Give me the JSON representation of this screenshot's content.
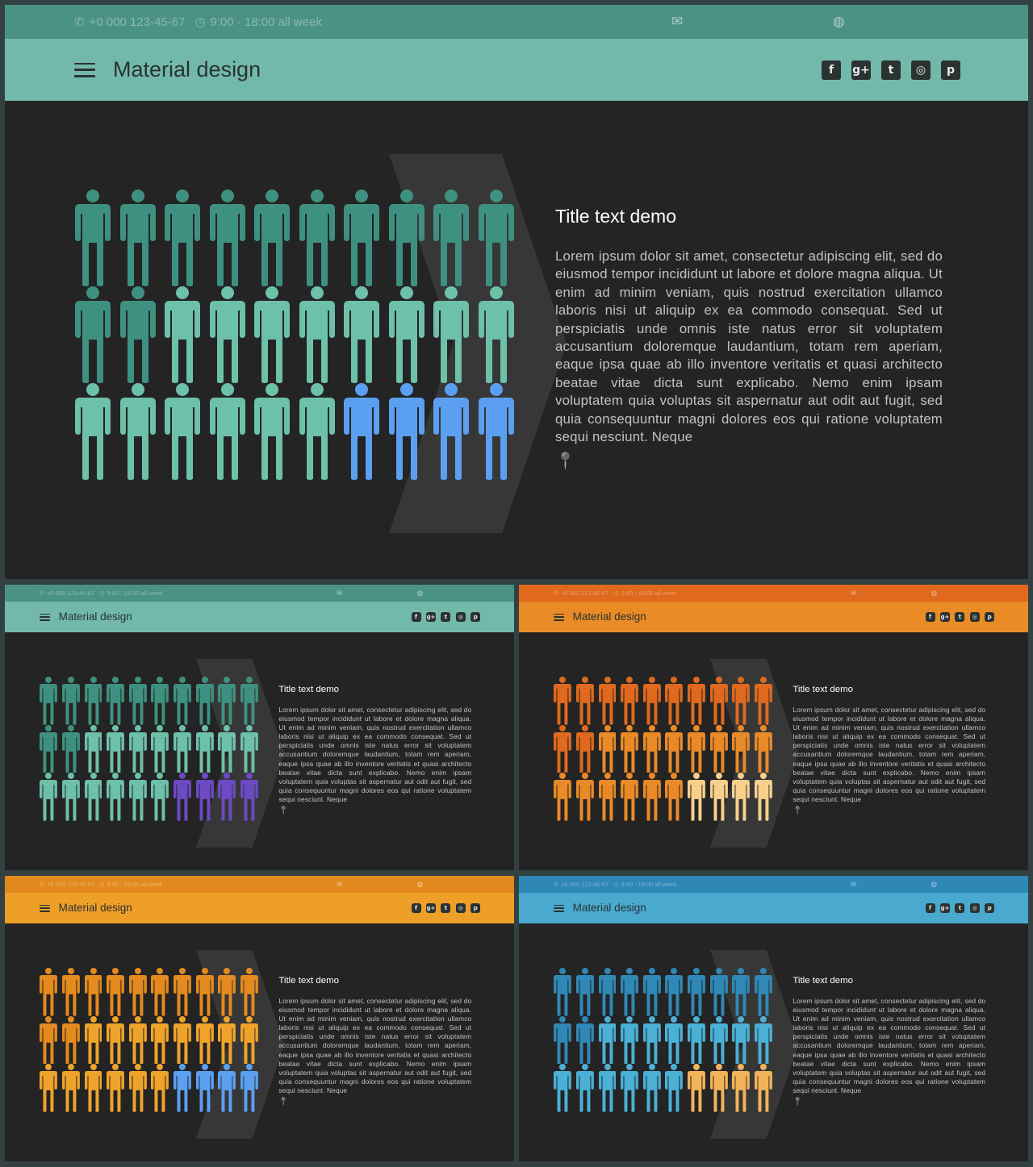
{
  "topbar": {
    "phone": "+0 000 123-45-67",
    "hours": "9:00 - 18:00 all week"
  },
  "header": {
    "brand": "Material design",
    "social_icons": [
      "facebook-icon",
      "google-plus-icon",
      "twitter-icon",
      "instagram-icon",
      "pinterest-icon"
    ]
  },
  "content": {
    "title": "Title text demo",
    "body": "Lorem ipsum dolor sit amet, consectetur adipiscing elit, sed do eiusmod tempor incididunt ut labore et dolore magna aliqua. Ut enim ad minim veniam, quis nostrud exercitation ullamco laboris nisi ut aliquip ex ea commodo consequat. Sed ut perspiciatis unde omnis iste natus error sit voluptatem accusantium doloremque laudantium, totam rem aperiam, eaque ipsa quae ab illo inventore veritatis et quasi architecto beatae vitae dicta sunt explicabo. Nemo enim ipsam voluptatem quia voluptas sit aspernatur aut odit aut fugit, sed quia consequuntur magni dolores eos qui ratione voluptatem sequi nesciunt. Neque"
  },
  "pictogram": {
    "rows": 3,
    "columns": 10,
    "total": 30,
    "highlighted": 4
  },
  "themes": [
    {
      "name": "teal-blue",
      "topbar": "#4a9285",
      "header": "#72b9ab",
      "row_colors": [
        [
          "#3e9180",
          "#3e9180",
          "#3e9180",
          "#3e9180",
          "#3e9180",
          "#3e9180",
          "#3e9180",
          "#3e9180",
          "#3e9180",
          "#3e9180"
        ],
        [
          "#3e9180",
          "#3e9180",
          "#6dc0aa",
          "#6dc0aa",
          "#6dc0aa",
          "#6dc0aa",
          "#6dc0aa",
          "#6dc0aa",
          "#6dc0aa",
          "#6dc0aa"
        ],
        [
          "#6dc0aa",
          "#6dc0aa",
          "#6dc0aa",
          "#6dc0aa",
          "#6dc0aa",
          "#6dc0aa",
          "#5b9ff1",
          "#5b9ff1",
          "#5b9ff1",
          "#5b9ff1"
        ]
      ]
    },
    {
      "name": "teal-purple",
      "topbar": "#4a9285",
      "header": "#72b9ab",
      "row_colors": [
        [
          "#3e9180",
          "#3e9180",
          "#3e9180",
          "#3e9180",
          "#3e9180",
          "#3e9180",
          "#3e9180",
          "#3e9180",
          "#3e9180",
          "#3e9180"
        ],
        [
          "#3e9180",
          "#3e9180",
          "#6dc0aa",
          "#6dc0aa",
          "#6dc0aa",
          "#6dc0aa",
          "#6dc0aa",
          "#6dc0aa",
          "#6dc0aa",
          "#6dc0aa"
        ],
        [
          "#6dc0aa",
          "#6dc0aa",
          "#6dc0aa",
          "#6dc0aa",
          "#6dc0aa",
          "#6dc0aa",
          "#6b4ac4",
          "#6b4ac4",
          "#6b4ac4",
          "#6b4ac4"
        ]
      ]
    },
    {
      "name": "orange",
      "topbar": "#e0691d",
      "header": "#e98b26",
      "row_colors": [
        [
          "#e0691d",
          "#e0691d",
          "#e0691d",
          "#e0691d",
          "#e0691d",
          "#e0691d",
          "#e0691d",
          "#e0691d",
          "#e0691d",
          "#e0691d"
        ],
        [
          "#e0691d",
          "#e0691d",
          "#ea8a27",
          "#ea8a27",
          "#ea8a27",
          "#ea8a27",
          "#ea8a27",
          "#ea8a27",
          "#ea8a27",
          "#ea8a27"
        ],
        [
          "#ea8a27",
          "#ea8a27",
          "#ea8a27",
          "#ea8a27",
          "#ea8a27",
          "#ea8a27",
          "#f7d08c",
          "#f7d08c",
          "#f7d08c",
          "#f7d08c"
        ]
      ]
    },
    {
      "name": "amber-blue",
      "topbar": "#e2891e",
      "header": "#ee9f27",
      "row_colors": [
        [
          "#e48a1e",
          "#e48a1e",
          "#e48a1e",
          "#e48a1e",
          "#e48a1e",
          "#e48a1e",
          "#e48a1e",
          "#e48a1e",
          "#e48a1e",
          "#e48a1e"
        ],
        [
          "#e48a1e",
          "#e48a1e",
          "#f0a32a",
          "#f0a32a",
          "#f0a32a",
          "#f0a32a",
          "#f0a32a",
          "#f0a32a",
          "#f0a32a",
          "#f0a32a"
        ],
        [
          "#f0a32a",
          "#f0a32a",
          "#f0a32a",
          "#f0a32a",
          "#f0a32a",
          "#f0a32a",
          "#5b9ff1",
          "#5b9ff1",
          "#5b9ff1",
          "#5b9ff1"
        ]
      ]
    },
    {
      "name": "blue",
      "topbar": "#2f87b6",
      "header": "#4aa9cf",
      "row_colors": [
        [
          "#2f88b5",
          "#2f88b5",
          "#2f88b5",
          "#2f88b5",
          "#2f88b5",
          "#2f88b5",
          "#2f88b5",
          "#2f88b5",
          "#2f88b5",
          "#2f88b5"
        ],
        [
          "#2f88b5",
          "#2f88b5",
          "#4ab0d6",
          "#4ab0d6",
          "#4ab0d6",
          "#4ab0d6",
          "#4ab0d6",
          "#4ab0d6",
          "#4ab0d6",
          "#4ab0d6"
        ],
        [
          "#4ab0d6",
          "#4ab0d6",
          "#4ab0d6",
          "#4ab0d6",
          "#4ab0d6",
          "#4ab0d6",
          "#f2b359",
          "#f2b359",
          "#f2b359",
          "#f2b359"
        ]
      ]
    }
  ]
}
